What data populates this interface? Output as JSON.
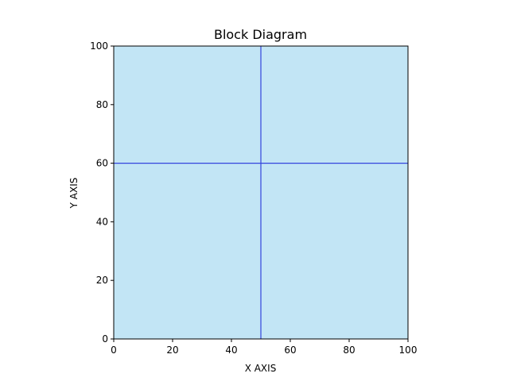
{
  "chart_data": {
    "type": "block-diagram",
    "title": "Block Diagram",
    "xlabel": "X AXIS",
    "ylabel": "Y AXIS",
    "xlim": [
      0,
      100
    ],
    "ylim": [
      0,
      100
    ],
    "xticks": [
      0,
      20,
      40,
      60,
      80,
      100
    ],
    "yticks": [
      0,
      20,
      40,
      60,
      80,
      100
    ],
    "xtick_labels": [
      "0",
      "20",
      "40",
      "60",
      "80",
      "100"
    ],
    "ytick_labels": [
      "0",
      "20",
      "40",
      "60",
      "80",
      "100"
    ],
    "grid": false,
    "block": {
      "x0": 0,
      "x1": 100,
      "y0": 0,
      "y1": 100,
      "color": "#c2e5f5"
    },
    "divider_lines": [
      {
        "orientation": "vertical",
        "x": 50,
        "y0": 0,
        "y1": 100,
        "color": "#3344dd"
      },
      {
        "orientation": "horizontal",
        "y": 60,
        "x0": 0,
        "x1": 100,
        "color": "#3344dd"
      }
    ]
  }
}
